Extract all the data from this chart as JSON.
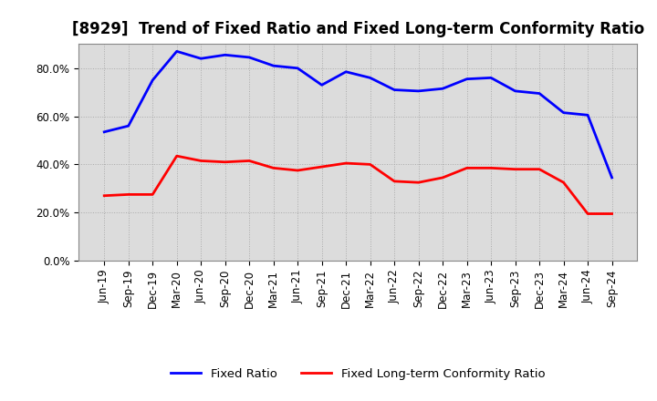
{
  "title": "[8929]  Trend of Fixed Ratio and Fixed Long-term Conformity Ratio",
  "x_labels": [
    "Jun-19",
    "Sep-19",
    "Dec-19",
    "Mar-20",
    "Jun-20",
    "Sep-20",
    "Dec-20",
    "Mar-21",
    "Jun-21",
    "Sep-21",
    "Dec-21",
    "Mar-22",
    "Jun-22",
    "Sep-22",
    "Dec-22",
    "Mar-23",
    "Jun-23",
    "Sep-23",
    "Dec-23",
    "Mar-24",
    "Jun-24",
    "Sep-24"
  ],
  "fixed_ratio": [
    53.5,
    56.0,
    75.0,
    87.0,
    84.0,
    85.5,
    84.5,
    81.0,
    80.0,
    73.0,
    78.5,
    76.0,
    71.0,
    70.5,
    71.5,
    75.5,
    76.0,
    70.5,
    69.5,
    61.5,
    60.5,
    34.5
  ],
  "fixed_lt_ratio": [
    27.0,
    27.5,
    27.5,
    43.5,
    41.5,
    41.0,
    41.5,
    38.5,
    37.5,
    39.0,
    40.5,
    40.0,
    33.0,
    32.5,
    34.5,
    38.5,
    38.5,
    38.0,
    38.0,
    32.5,
    19.5,
    19.5
  ],
  "fixed_ratio_color": "#0000FF",
  "fixed_lt_ratio_color": "#FF0000",
  "ylim": [
    0,
    90
  ],
  "yticks": [
    0,
    20,
    40,
    60,
    80
  ],
  "ytick_labels": [
    "0.0%",
    "20.0%",
    "40.0%",
    "60.0%",
    "80.0%"
  ],
  "background_color": "#FFFFFF",
  "plot_bg_color": "#DCDCDC",
  "grid_color": "#AAAAAA",
  "line_width": 2.0,
  "legend_fixed": "Fixed Ratio",
  "legend_fixed_lt": "Fixed Long-term Conformity Ratio",
  "title_fontsize": 12,
  "tick_fontsize": 8.5
}
